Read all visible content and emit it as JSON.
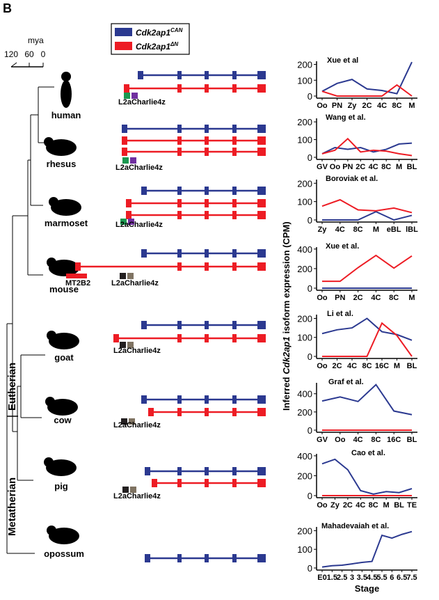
{
  "panel_label": "B",
  "legend": [
    {
      "gene": "Cdk2ap1",
      "isoform": "CAN",
      "color": "#2b3990"
    },
    {
      "gene": "Cdk2ap1",
      "isoform": "ΔN",
      "color": "#ed1c24"
    }
  ],
  "scale": {
    "title": "mya",
    "ticks": [
      120,
      60,
      0
    ]
  },
  "clades": [
    "Eutherian",
    "Metatherian"
  ],
  "species": [
    {
      "name": "human",
      "repeats": [
        "L2aCharlie4z"
      ]
    },
    {
      "name": "rhesus",
      "repeats": [
        "L2aCharlie4z"
      ]
    },
    {
      "name": "marmoset",
      "repeats": [
        "L2aCharlie4z"
      ]
    },
    {
      "name": "mouse",
      "repeats": [
        "MT2B2",
        "L2aCharlie4z"
      ]
    },
    {
      "name": "goat",
      "repeats": [
        "L2aCharlie4z"
      ]
    },
    {
      "name": "cow",
      "repeats": [
        "L2aCharlie4z"
      ]
    },
    {
      "name": "pig",
      "repeats": [
        "L2aCharlie4z"
      ]
    },
    {
      "name": "opossum",
      "repeats": []
    }
  ],
  "shared_ylabel": {
    "pre": "Inferred",
    "gene": "Cdk2ap1",
    "post": "isoform expression (CPM)"
  },
  "chart_data": [
    {
      "type": "line",
      "title": "Xue et al",
      "categories": [
        "Oo",
        "PN",
        "Zy",
        "2C",
        "4C",
        "8C",
        "M"
      ],
      "series": [
        {
          "color": "#2b3990",
          "values": [
            30,
            80,
            105,
            45,
            35,
            15,
            215
          ]
        },
        {
          "color": "#ed1c24",
          "values": [
            30,
            0,
            0,
            0,
            0,
            70,
            0
          ]
        }
      ],
      "ylim": [
        0,
        220
      ],
      "yticks": [
        0,
        100,
        200
      ]
    },
    {
      "type": "line",
      "title": "Wang et al.",
      "categories": [
        "GV",
        "Oo",
        "PN",
        "2C",
        "4C",
        "8C",
        "M",
        "BL"
      ],
      "series": [
        {
          "color": "#2b3990",
          "values": [
            20,
            55,
            45,
            55,
            30,
            45,
            75,
            80
          ]
        },
        {
          "color": "#ed1c24",
          "values": [
            20,
            40,
            105,
            30,
            40,
            35,
            20,
            10
          ]
        }
      ],
      "ylim": [
        0,
        220
      ],
      "yticks": [
        0,
        100,
        200
      ]
    },
    {
      "type": "line",
      "title": "Boroviak et al.",
      "categories": [
        "Zy",
        "4C",
        "8C",
        "M",
        "eBL",
        "lBL"
      ],
      "series": [
        {
          "color": "#2b3990",
          "values": [
            0,
            0,
            0,
            45,
            0,
            25
          ]
        },
        {
          "color": "#ed1c24",
          "values": [
            75,
            110,
            55,
            50,
            65,
            40
          ]
        }
      ],
      "ylim": [
        0,
        220
      ],
      "yticks": [
        0,
        100,
        200
      ]
    },
    {
      "type": "line",
      "title": "Xue et al.",
      "categories": [
        "Oo",
        "PN",
        "2C",
        "4C",
        "8C",
        "M"
      ],
      "series": [
        {
          "color": "#2b3990",
          "values": [
            0,
            0,
            0,
            0,
            0,
            0
          ]
        },
        {
          "color": "#ed1c24",
          "values": [
            70,
            70,
            210,
            335,
            205,
            330
          ]
        }
      ],
      "ylim": [
        0,
        420
      ],
      "yticks": [
        0,
        200,
        400
      ]
    },
    {
      "type": "line",
      "title": "Li et al.",
      "categories": [
        "Oo",
        "2C",
        "4C",
        "8C",
        "16C",
        "M",
        "BL"
      ],
      "series": [
        {
          "color": "#2b3990",
          "values": [
            120,
            140,
            150,
            200,
            130,
            115,
            85
          ]
        },
        {
          "color": "#ed1c24",
          "values": [
            0,
            0,
            0,
            0,
            175,
            110,
            0
          ]
        }
      ],
      "ylim": [
        0,
        220
      ],
      "yticks": [
        0,
        100,
        200
      ]
    },
    {
      "type": "line",
      "title": "Graf et al.",
      "categories": [
        "GV",
        "Oo",
        "4C",
        "8C",
        "16C",
        "BL"
      ],
      "series": [
        {
          "color": "#2b3990",
          "values": [
            320,
            365,
            315,
            500,
            210,
            170
          ]
        },
        {
          "color": "#ed1c24",
          "values": [
            0,
            0,
            0,
            0,
            0,
            0
          ]
        }
      ],
      "ylim": [
        0,
        520
      ],
      "yticks": [
        0,
        200,
        400
      ]
    },
    {
      "type": "line",
      "title": "Cao et al.",
      "categories": [
        "Oo",
        "Zy",
        "2C",
        "4C",
        "8C",
        "M",
        "BL",
        "TE"
      ],
      "series": [
        {
          "color": "#2b3990",
          "values": [
            320,
            365,
            260,
            50,
            15,
            40,
            30,
            70
          ]
        },
        {
          "color": "#ed1c24",
          "values": [
            0,
            0,
            0,
            0,
            0,
            0,
            0,
            0
          ]
        }
      ],
      "ylim": [
        0,
        420
      ],
      "yticks": [
        0,
        200,
        400
      ]
    },
    {
      "type": "line",
      "title": "Mahadevaiah et al.",
      "xlabel": "Stage",
      "categories": [
        "E0",
        "1.5",
        "2.5",
        "3",
        "3.5",
        "4.5",
        "5.5",
        "6",
        "6.5",
        "7.5"
      ],
      "series": [
        {
          "color": "#2b3990",
          "values": [
            5,
            12,
            15,
            22,
            30,
            35,
            175,
            160,
            180,
            195
          ]
        }
      ],
      "ylim": [
        0,
        220
      ],
      "yticks": [
        0,
        100,
        200
      ]
    }
  ]
}
